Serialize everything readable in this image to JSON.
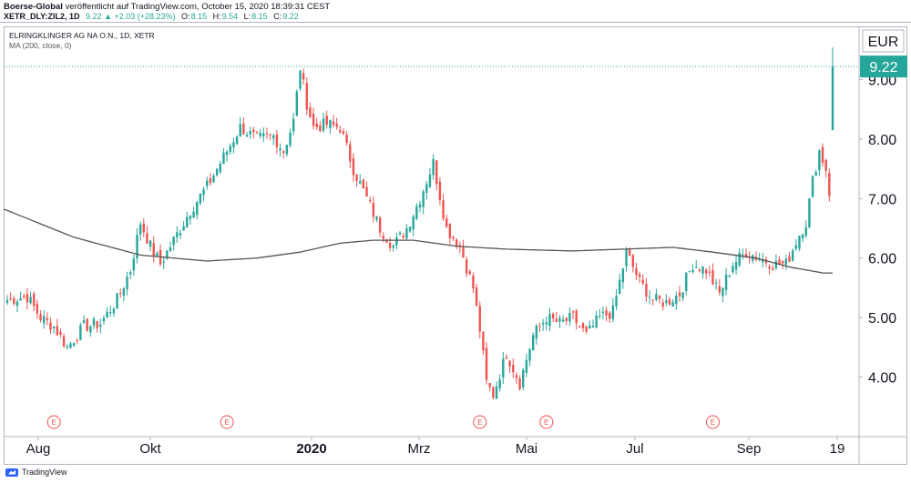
{
  "header": {
    "brand": "Boerse-Global",
    "published": "veröffentlicht auf TradingView.com, October 15, 2020 18:39:31 CEST",
    "symbol": "XETR_DLY:ZIL2, 1D",
    "change": "9.22 ▲ +2.03 (+28.23%)",
    "ohlc": [
      {
        "label": "O:",
        "value": "8.15"
      },
      {
        "label": "H:",
        "value": "9.54"
      },
      {
        "label": "L:",
        "value": "8.15"
      },
      {
        "label": "C:",
        "value": "9.22"
      }
    ]
  },
  "footer": {
    "logo_text": "TradingView"
  },
  "chart_data": {
    "type": "candlestick",
    "title": "ELRINGKLINGER AG NA O.N., 1D, XETR",
    "indicator": "MA (200, close, 0)",
    "currency": "EUR",
    "last_price": "9.22",
    "y_ticks": [
      "9.00",
      "8.00",
      "7.00",
      "6.00",
      "5.00",
      "4.00"
    ],
    "ylim": [
      3.2,
      9.8
    ],
    "x_ticks": [
      "Aug",
      "Okt",
      "2020",
      "Mrz",
      "Mai",
      "Jul",
      "Sep",
      "19"
    ],
    "earnings_marker": "E",
    "earnings_marker_count": 5,
    "colors": {
      "up": "#26a69a",
      "down": "#ef5350",
      "ma": "#555555",
      "price_label": "#26a69a",
      "earnings": "#ef5350"
    },
    "anchors_close": [
      [
        0,
        5.3
      ],
      [
        6,
        5.35
      ],
      [
        10,
        5.0
      ],
      [
        14,
        4.85
      ],
      [
        18,
        4.5
      ],
      [
        23,
        4.85
      ],
      [
        28,
        4.9
      ],
      [
        33,
        5.3
      ],
      [
        37,
        5.8
      ],
      [
        40,
        6.6
      ],
      [
        43,
        6.2
      ],
      [
        46,
        5.9
      ],
      [
        50,
        6.3
      ],
      [
        55,
        6.8
      ],
      [
        60,
        7.2
      ],
      [
        65,
        7.7
      ],
      [
        70,
        8.2
      ],
      [
        75,
        8.0
      ],
      [
        80,
        8.05
      ],
      [
        83,
        7.8
      ],
      [
        86,
        8.3
      ],
      [
        88,
        9.2
      ],
      [
        90,
        8.6
      ],
      [
        92,
        8.2
      ],
      [
        96,
        8.25
      ],
      [
        100,
        8.2
      ],
      [
        104,
        7.5
      ],
      [
        108,
        7.0
      ],
      [
        112,
        6.5
      ],
      [
        116,
        6.2
      ],
      [
        120,
        6.5
      ],
      [
        124,
        7.0
      ],
      [
        128,
        7.6
      ],
      [
        132,
        6.5
      ],
      [
        136,
        6.2
      ],
      [
        140,
        5.5
      ],
      [
        142,
        4.8
      ],
      [
        144,
        3.9
      ],
      [
        146,
        3.7
      ],
      [
        150,
        4.4
      ],
      [
        154,
        3.9
      ],
      [
        158,
        4.7
      ],
      [
        162,
        5.0
      ],
      [
        166,
        4.9
      ],
      [
        170,
        5.0
      ],
      [
        174,
        4.7
      ],
      [
        178,
        5.0
      ],
      [
        182,
        5.1
      ],
      [
        186,
        6.1
      ],
      [
        190,
        5.6
      ],
      [
        194,
        5.3
      ],
      [
        198,
        5.25
      ],
      [
        202,
        5.4
      ],
      [
        206,
        5.9
      ],
      [
        210,
        5.8
      ],
      [
        214,
        5.4
      ],
      [
        218,
        5.9
      ],
      [
        222,
        6.1
      ],
      [
        226,
        6.0
      ],
      [
        230,
        5.9
      ],
      [
        234,
        5.9
      ],
      [
        238,
        6.4
      ],
      [
        240,
        6.6
      ],
      [
        242,
        7.3
      ],
      [
        244,
        7.8
      ],
      [
        246,
        7.5
      ],
      [
        247,
        7.1
      ],
      [
        248,
        9.22
      ]
    ],
    "ma200": [
      [
        0,
        6.8
      ],
      [
        20,
        6.35
      ],
      [
        40,
        6.05
      ],
      [
        60,
        5.95
      ],
      [
        75,
        6.0
      ],
      [
        88,
        6.1
      ],
      [
        100,
        6.25
      ],
      [
        110,
        6.3
      ],
      [
        122,
        6.3
      ],
      [
        135,
        6.2
      ],
      [
        150,
        6.15
      ],
      [
        170,
        6.12
      ],
      [
        185,
        6.15
      ],
      [
        200,
        6.18
      ],
      [
        212,
        6.1
      ],
      [
        225,
        6.0
      ],
      [
        235,
        5.85
      ],
      [
        245,
        5.75
      ],
      [
        248,
        5.75
      ]
    ]
  }
}
